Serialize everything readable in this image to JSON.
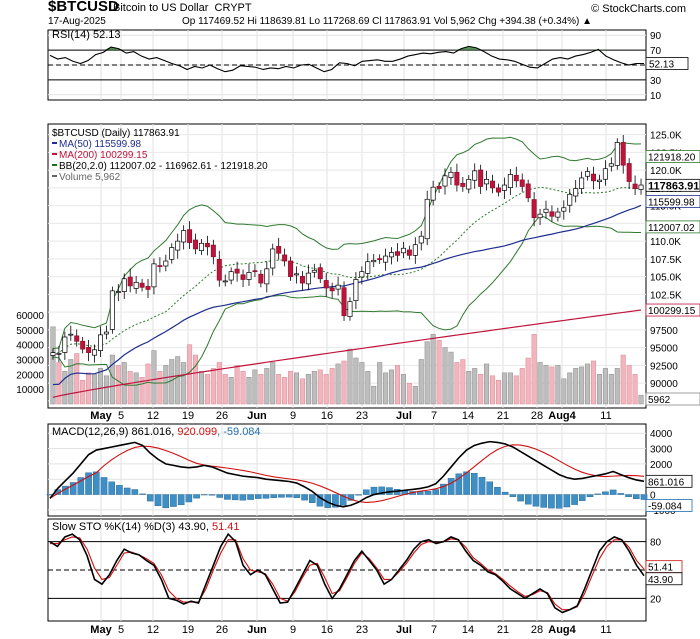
{
  "header": {
    "symbol": "$BTCUSD",
    "name": "Bitcoin to US Dollar",
    "exchange": "CRYPT",
    "date": "17-Aug-2025",
    "ohlc": "Op 117469.52  Hi 118639.81  Lo 117268.69  Cl 117863.91  Vol 5,962  Chg +394.38 (+0.34%) ▲",
    "credit": "© StockCharts.com"
  },
  "panels": {
    "rsi": {
      "label": "RSI(14) 52.13",
      "ticks": [
        "90",
        "70",
        "50",
        "30",
        "10"
      ],
      "value_tag": "52.13",
      "overbought": 70,
      "oversold": 30
    },
    "price": {
      "legend": [
        {
          "text": "$BTCUSD (Daily) 117863.91",
          "color": "#000000"
        },
        {
          "text": "MA(50) 115599.98",
          "color": "#1f2f8f"
        },
        {
          "text": "MA(200) 100299.15",
          "color": "#c0143c"
        },
        {
          "text": "BB(20,2.0) 112007.02 - 116962.61 - 121918.20",
          "color": "#1b6e1b"
        },
        {
          "text": "Volume 5,962",
          "color": "#666666"
        }
      ],
      "ticks": [
        "125.0K",
        "122.5K",
        "120.0K",
        "117.5K",
        "115.0K",
        "112.5K",
        "110.0K",
        "107.5K",
        "105.0K",
        "102.5K",
        "100.0K",
        "97500",
        "95000",
        "92500",
        "90000",
        "87500"
      ],
      "tags": [
        {
          "text": "121918.20",
          "bold": false
        },
        {
          "text": "117863.91",
          "bold": true
        },
        {
          "text": "115599.98",
          "bold": false
        },
        {
          "text": "112007.02",
          "bold": false
        },
        {
          "text": "100299.15",
          "bold": false
        },
        {
          "text": "5962",
          "bold": false
        }
      ],
      "volume_ticks": [
        "60000",
        "50000",
        "40000",
        "30000",
        "20000",
        "10000"
      ]
    },
    "macd": {
      "label_parts": [
        {
          "text": "MACD(12,26,9) 861.016, ",
          "color": "#000000"
        },
        {
          "text": "920.099",
          "color": "#d01010"
        },
        {
          "text": ", -59.084",
          "color": "#1f6fb0"
        }
      ],
      "ticks": [
        "4000",
        "3000",
        "2000",
        "1000",
        "0",
        "-1000"
      ],
      "tags": [
        "861.016",
        "-59.084"
      ]
    },
    "sto": {
      "label_parts": [
        {
          "text": "Slow STO %K(14) %D(3) 43.90, ",
          "color": "#000000"
        },
        {
          "text": "51.41",
          "color": "#d01010"
        }
      ],
      "ticks": [
        "80",
        "50",
        "20"
      ],
      "tags": [
        "51.41",
        "43.90"
      ]
    }
  },
  "x_axis_labels": [
    "May",
    "5",
    "12",
    "19",
    "26",
    "Jun",
    "9",
    "16",
    "23",
    "Jul",
    "7",
    "14",
    "21",
    "28",
    "Aug4",
    "11"
  ],
  "chart_data": {
    "type": "candlestick",
    "x_range": [
      "2025-04-27",
      "2025-08-17"
    ],
    "y_range": [
      86500,
      126500
    ],
    "close_approx": [
      94300,
      94200,
      96500,
      96900,
      95900,
      94800,
      94300,
      94700,
      96800,
      97200,
      103000,
      102900,
      104700,
      103700,
      104200,
      103500,
      103200,
      106800,
      106500,
      107200,
      109100,
      110000,
      111500,
      109800,
      108900,
      109700,
      109200,
      107800,
      104500,
      104400,
      105700,
      105500,
      104600,
      105600,
      105700,
      104100,
      106100,
      108900,
      108300,
      107200,
      105000,
      105400,
      104100,
      105500,
      105900,
      104700,
      103400,
      103000,
      103800,
      99500,
      101500,
      104600,
      105700,
      107100,
      107300,
      107400,
      107900,
      108400,
      108000,
      109000,
      108000,
      109500,
      110700,
      115900,
      117600,
      117400,
      119200,
      119700,
      117900,
      117700,
      118700,
      119900,
      117700,
      118700,
      117500,
      116900,
      117900,
      119400,
      118500,
      117700,
      116100,
      113300,
      113800,
      114500,
      113500,
      114100,
      114700,
      116600,
      117400,
      118900,
      119800,
      118500,
      118600,
      120200,
      120900,
      123900,
      120700,
      118400,
      117400,
      117900
    ],
    "volume_approx": [
      52000,
      28000,
      22000,
      30000,
      34000,
      16000,
      21000,
      20000,
      24000,
      19000,
      33000,
      26000,
      28000,
      22000,
      21000,
      18000,
      27000,
      36000,
      22000,
      26000,
      30000,
      32000,
      28000,
      40000,
      33000,
      22000,
      20000,
      24000,
      28000,
      20000,
      18000,
      26000,
      22000,
      18000,
      23000,
      20000,
      24000,
      28000,
      20000,
      18000,
      22000,
      21000,
      17000,
      20000,
      22000,
      23000,
      20000,
      24000,
      27000,
      29000,
      37000,
      31000,
      28000,
      22000,
      12000,
      28000,
      21000,
      23000,
      26000,
      20000,
      14000,
      12000,
      30000,
      42000,
      47000,
      43000,
      38000,
      35000,
      28000,
      30000,
      22000,
      24000,
      20000,
      27000,
      19000,
      16000,
      21000,
      21000,
      19000,
      24000,
      31000,
      47000,
      28000,
      26000,
      25000,
      26000,
      17000,
      21000,
      24000,
      25000,
      27000,
      29000,
      20000,
      24000,
      20000,
      24000,
      33000,
      26000,
      20000,
      5962
    ],
    "series": [
      {
        "name": "MA(50)",
        "last": 115599.98
      },
      {
        "name": "MA(200)",
        "last": 100299.15
      },
      {
        "name": "BB upper",
        "last": 121918.2
      },
      {
        "name": "BB mid",
        "last": 116962.61
      },
      {
        "name": "BB lower",
        "last": 112007.02
      },
      {
        "name": "RSI(14)",
        "last": 52.13
      },
      {
        "name": "MACD",
        "last": 861.016
      },
      {
        "name": "Signal",
        "last": 920.099
      },
      {
        "name": "Histogram",
        "last": -59.084
      },
      {
        "name": "%K",
        "last": 43.9
      },
      {
        "name": "%D",
        "last": 51.41
      }
    ],
    "rsi_approx": [
      63,
      58,
      60,
      55,
      52,
      56,
      64,
      67,
      74,
      72,
      66,
      68,
      62,
      58,
      60,
      56,
      52,
      49,
      44,
      48,
      46,
      50,
      45,
      41,
      43,
      49,
      48,
      47,
      44,
      46,
      45,
      48,
      46,
      50,
      51,
      46,
      41,
      44,
      53,
      52,
      49,
      55,
      56,
      57,
      55,
      55,
      58,
      62,
      64,
      66,
      65,
      67,
      68,
      66,
      72,
      75,
      73,
      68,
      62,
      58,
      57,
      55,
      51,
      47,
      46,
      52,
      58,
      60,
      58,
      62,
      64,
      67,
      71,
      62,
      57,
      53,
      50,
      52,
      52
    ],
    "macd_approx": [
      -250,
      400,
      900,
      1400,
      2000,
      2600,
      2900,
      3000,
      3100,
      3200,
      3300,
      3400,
      3200,
      2700,
      2300,
      2000,
      1900,
      1800,
      1750,
      1800,
      1900,
      1800,
      1600,
      1400,
      1300,
      1200,
      1150,
      1100,
      1000,
      950,
      900,
      850,
      750,
      500,
      200,
      -200,
      -500,
      -700,
      -800,
      -700,
      -500,
      -200,
      0,
      100,
      180,
      220,
      280,
      330,
      400,
      500,
      700,
      1200,
      1800,
      2400,
      2900,
      3200,
      3350,
      3450,
      3400,
      3300,
      3100,
      2800,
      2500,
      2200,
      1900,
      1600,
      1300,
      1100,
      1000,
      1050,
      1150,
      1250,
      1350,
      1500,
      1300,
      1100,
      950,
      860
    ],
    "sto_k_approx": [
      80,
      75,
      85,
      88,
      82,
      65,
      40,
      35,
      45,
      60,
      72,
      68,
      66,
      60,
      55,
      40,
      20,
      18,
      14,
      17,
      15,
      35,
      55,
      75,
      88,
      80,
      55,
      45,
      50,
      45,
      30,
      15,
      16,
      30,
      45,
      60,
      55,
      35,
      20,
      30,
      45,
      60,
      70,
      60,
      50,
      35,
      40,
      50,
      60,
      72,
      80,
      82,
      78,
      80,
      85,
      82,
      70,
      60,
      55,
      48,
      45,
      38,
      30,
      25,
      20,
      25,
      30,
      25,
      10,
      5,
      8,
      12,
      30,
      50,
      70,
      80,
      85,
      82,
      70,
      55,
      44
    ],
    "sto_d_approx": [
      78,
      78,
      82,
      85,
      84,
      72,
      52,
      40,
      42,
      55,
      68,
      69,
      66,
      62,
      57,
      45,
      28,
      20,
      16,
      16,
      16,
      30,
      50,
      68,
      82,
      82,
      62,
      50,
      48,
      46,
      35,
      20,
      17,
      27,
      42,
      55,
      57,
      42,
      25,
      28,
      42,
      57,
      68,
      62,
      52,
      40,
      40,
      48,
      57,
      68,
      77,
      80,
      79,
      80,
      83,
      82,
      74,
      63,
      57,
      50,
      46,
      40,
      33,
      27,
      22,
      24,
      28,
      26,
      14,
      8,
      8,
      11,
      25,
      44,
      62,
      75,
      82,
      82,
      74,
      60,
      51
    ],
    "x_axis_labels": [
      "May",
      "5",
      "12",
      "19",
      "26",
      "Jun",
      "9",
      "16",
      "23",
      "Jul",
      "7",
      "14",
      "21",
      "28",
      "Aug4",
      "11"
    ]
  }
}
